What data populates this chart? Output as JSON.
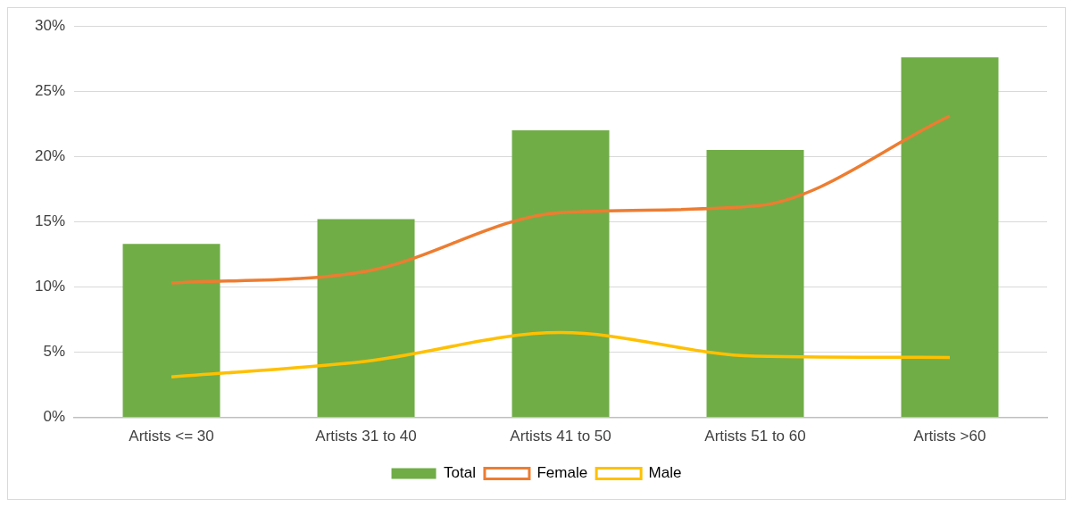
{
  "chart_data": {
    "type": "bar",
    "categories": [
      "Artists <= 30",
      "Artists 31 to 40",
      "Artists 41 to 50",
      "Artists 51 to 60",
      "Artists >60"
    ],
    "series": [
      {
        "name": "Total",
        "color": "#70ad47",
        "values": [
          13.3,
          15.2,
          22.0,
          20.5,
          27.6
        ]
      },
      {
        "name": "Female",
        "type": "line",
        "color": "#ed7d31",
        "values": [
          10.3,
          11.2,
          15.7,
          16.2,
          23.1
        ]
      },
      {
        "name": "Male",
        "type": "line",
        "color": "#ffc000",
        "values": [
          3.1,
          4.3,
          6.5,
          4.7,
          4.6
        ]
      }
    ],
    "ylim": [
      0,
      30
    ],
    "yticks": [
      {
        "value": 0,
        "label": "0%"
      },
      {
        "value": 5,
        "label": "5%"
      },
      {
        "value": 10,
        "label": "10%"
      },
      {
        "value": 15,
        "label": "15%"
      },
      {
        "value": 20,
        "label": "20%"
      },
      {
        "value": 25,
        "label": "25%"
      },
      {
        "value": 30,
        "label": "30%"
      }
    ],
    "grid": "y",
    "legend": "bottom",
    "marker": "none",
    "line_style": "solid"
  }
}
